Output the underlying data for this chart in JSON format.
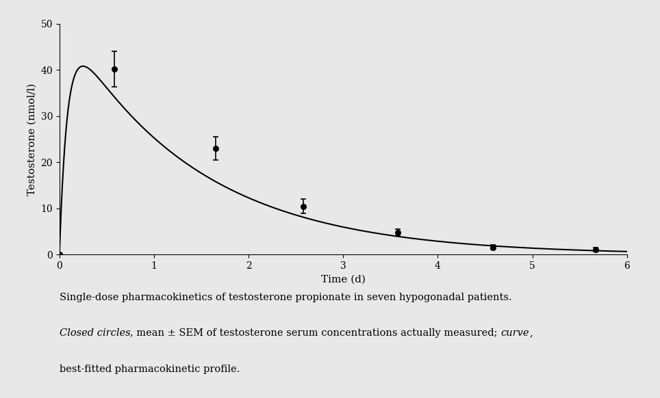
{
  "data_points_x": [
    0.0,
    0.58,
    1.65,
    2.58,
    3.58,
    4.58,
    5.67
  ],
  "data_points_y": [
    0.0,
    40.2,
    23.0,
    10.5,
    4.8,
    1.6,
    1.1
  ],
  "error_bars": [
    0.0,
    3.8,
    2.5,
    1.5,
    0.8,
    0.5,
    0.4
  ],
  "pk_A": 52.0,
  "pk_k1": 12.0,
  "pk_k2": 0.72,
  "xlim": [
    0,
    6
  ],
  "ylim": [
    0,
    50
  ],
  "xticks": [
    0,
    1,
    2,
    3,
    4,
    5,
    6
  ],
  "yticks": [
    0,
    10,
    20,
    30,
    40,
    50
  ],
  "xlabel": "Time (d)",
  "ylabel": "Testosterone (nmol/l)",
  "bg_color": "#e8e8e8",
  "line_color": "#000000",
  "marker_color": "#000000",
  "font_size_axis_label": 11,
  "font_size_tick": 10,
  "font_size_caption": 10.5
}
